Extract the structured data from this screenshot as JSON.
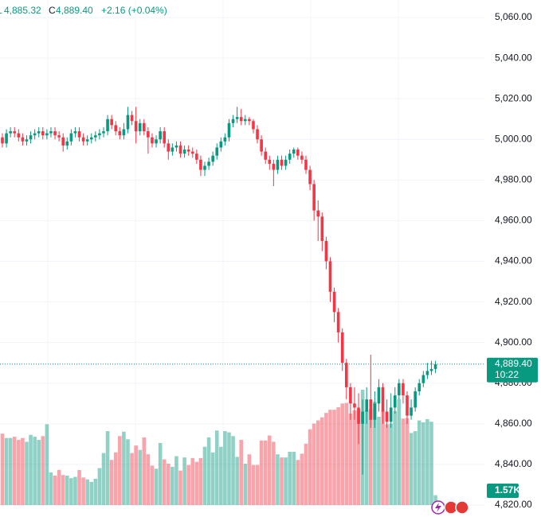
{
  "chart_data": {
    "type": "candlestick",
    "header": {
      "low_prefix": "L",
      "low": "4,885.32",
      "close_prefix": "C",
      "close": "4,889.40",
      "change": "+2.16 (+0.04%)"
    },
    "ylim": [
      4820,
      5060
    ],
    "yticks": [
      {
        "value": 4820,
        "label": "4,820.00"
      },
      {
        "value": 4840,
        "label": "4,840.00"
      },
      {
        "value": 4860,
        "label": "4,860.00"
      },
      {
        "value": 4880,
        "label": "4,880.00"
      },
      {
        "value": 4900,
        "label": "4,900.00"
      },
      {
        "value": 4920,
        "label": "4,920.00"
      },
      {
        "value": 4940,
        "label": "4,940.00"
      },
      {
        "value": 4960,
        "label": "4,960.00"
      },
      {
        "value": 4980,
        "label": "4,980.00"
      },
      {
        "value": 5000,
        "label": "5,000.00"
      },
      {
        "value": 5020,
        "label": "5,020.00"
      },
      {
        "value": 5040,
        "label": "5,040.00"
      },
      {
        "value": 5060,
        "label": "5,060.00"
      }
    ],
    "grid": true,
    "up_color": "#089981",
    "down_color": "#f23645",
    "open": [
      5001,
      4998,
      5003,
      5004,
      5003,
      5001,
      4999,
      5000,
      5002,
      5003,
      5004,
      5002,
      5003,
      5004,
      5002,
      5001,
      4997,
      4999,
      5003,
      5004,
      5001,
      4999,
      5000,
      5001,
      5002,
      5003,
      5004,
      5010,
      5007,
      5004,
      5002,
      5005,
      5012,
      5009,
      5004,
      5008,
      5004,
      5001,
      4998,
      5000,
      5004,
      4998,
      4994,
      4996,
      4997,
      4993,
      4995,
      4994,
      4993,
      4990,
      4985,
      4987,
      4989,
      4992,
      4996,
      4999,
      5001,
      5008,
      5010,
      5011,
      5009,
      5010,
      5009,
      5005,
      5000,
      4994,
      4990,
      4988,
      4985,
      4990,
      4987,
      4990,
      4993,
      4995,
      4992,
      4990,
      4985,
      4978,
      4965,
      4962,
      4950,
      4940,
      4925,
      4915,
      4905,
      4890,
      4878,
      4870,
      4868,
      4860,
      4866,
      4872,
      4862,
      4870,
      4878,
      4866,
      4861,
      4868,
      4874,
      4880,
      4874,
      4864,
      4868,
      4876,
      4880,
      4884,
      4886,
      4887
    ],
    "high": [
      5003,
      5005,
      5006,
      5006,
      5005,
      5003,
      5002,
      5004,
      5005,
      5006,
      5006,
      5005,
      5006,
      5006,
      5004,
      5003,
      5001,
      5005,
      5006,
      5006,
      5003,
      5002,
      5003,
      5004,
      5005,
      5006,
      5012,
      5012,
      5009,
      5006,
      5008,
      5016,
      5014,
      5016,
      5010,
      5010,
      5006,
      5003,
      5002,
      5006,
      5006,
      5000,
      4998,
      4999,
      4999,
      4997,
      4997,
      4996,
      4995,
      4992,
      4989,
      4991,
      4994,
      4998,
      5001,
      5003,
      5010,
      5012,
      5016,
      5015,
      5012,
      5011,
      5010,
      5007,
      5002,
      4996,
      4992,
      4990,
      4992,
      4992,
      4992,
      4995,
      4996,
      4996,
      4994,
      4992,
      4987,
      4980,
      4970,
      4964,
      4952,
      4942,
      4927,
      4917,
      4907,
      4892,
      4880,
      4878,
      4875,
      4872,
      4878,
      4894,
      4876,
      4882,
      4880,
      4872,
      4875,
      4878,
      4882,
      4882,
      4876,
      4872,
      4878,
      4882,
      4886,
      4890,
      4891,
      4891
    ],
    "low": [
      4996,
      4996,
      5001,
      5001,
      4999,
      4997,
      4997,
      4998,
      5000,
      5001,
      5000,
      5000,
      5001,
      5000,
      4999,
      4994,
      4995,
      4997,
      5001,
      4999,
      4997,
      4997,
      4998,
      4999,
      5000,
      5001,
      5002,
      5005,
      5002,
      5000,
      5000,
      5003,
      5007,
      4998,
      5002,
      5002,
      4993,
      4996,
      4996,
      4998,
      4996,
      4990,
      4992,
      4994,
      4991,
      4991,
      4992,
      4991,
      4988,
      4982,
      4982,
      4985,
      4987,
      4990,
      4994,
      4997,
      4999,
      5006,
      5008,
      5007,
      5007,
      5007,
      5003,
      4998,
      4992,
      4988,
      4985,
      4977,
      4983,
      4985,
      4985,
      4988,
      4991,
      4990,
      4988,
      4983,
      4975,
      4960,
      4950,
      4945,
      4936,
      4920,
      4910,
      4900,
      4886,
      4872,
      4862,
      4862,
      4850,
      4835,
      4860,
      4858,
      4858,
      4866,
      4860,
      4858,
      4858,
      4865,
      4872,
      4870,
      4860,
      4862,
      4866,
      4874,
      4878,
      4882,
      4884,
      4885
    ],
    "close": [
      4998,
      5003,
      5004,
      5003,
      5001,
      4999,
      5000,
      5002,
      5003,
      5004,
      5002,
      5003,
      5004,
      5002,
      5001,
      4997,
      4999,
      5003,
      5004,
      5001,
      4999,
      5000,
      5001,
      5002,
      5003,
      5004,
      5010,
      5007,
      5004,
      5002,
      5005,
      5012,
      5009,
      5004,
      5008,
      5004,
      5001,
      4998,
      5000,
      5004,
      4998,
      4994,
      4996,
      4997,
      4993,
      4995,
      4994,
      4993,
      4990,
      4985,
      4987,
      4989,
      4992,
      4996,
      4999,
      5001,
      5008,
      5010,
      5011,
      5009,
      5010,
      5009,
      5005,
      5000,
      4994,
      4990,
      4988,
      4985,
      4990,
      4987,
      4990,
      4993,
      4995,
      4992,
      4990,
      4985,
      4978,
      4965,
      4962,
      4950,
      4940,
      4925,
      4915,
      4905,
      4890,
      4878,
      4870,
      4868,
      4860,
      4866,
      4872,
      4862,
      4870,
      4878,
      4866,
      4861,
      4868,
      4874,
      4880,
      4874,
      4864,
      4868,
      4876,
      4880,
      4884,
      4886,
      4887,
      4889.4
    ],
    "volume": [
      11400,
      10700,
      10700,
      10900,
      10400,
      10700,
      10100,
      11200,
      10900,
      10400,
      11000,
      12900,
      5200,
      4700,
      5600,
      4800,
      4700,
      4300,
      4500,
      5600,
      4400,
      4100,
      3700,
      4200,
      5900,
      8300,
      11800,
      7200,
      8400,
      11000,
      11700,
      10500,
      8300,
      9500,
      8800,
      10800,
      8100,
      6300,
      5800,
      9900,
      7300,
      6600,
      6100,
      7800,
      5500,
      7600,
      6400,
      7500,
      6900,
      7500,
      9300,
      10800,
      8400,
      11900,
      9300,
      11800,
      11600,
      11000,
      7700,
      10400,
      6600,
      8100,
      6400,
      6400,
      10300,
      10300,
      11100,
      10100,
      8100,
      7600,
      7600,
      8500,
      8500,
      7200,
      8200,
      9800,
      12100,
      13000,
      13500,
      14000,
      14700,
      15200,
      15200,
      15600,
      16200,
      16300,
      14600,
      15100,
      15300,
      18400,
      15100,
      15300,
      16500,
      14100,
      15000,
      12900,
      13000,
      15000,
      16900,
      13800,
      13900,
      11500,
      11800,
      13500,
      13200,
      13700,
      13300,
      1570
    ],
    "last_price": {
      "value": 4889.4,
      "label": "4,889.40"
    },
    "countdown": "10:22",
    "last_volume": {
      "value": 1570,
      "label": "1.57K"
    }
  }
}
